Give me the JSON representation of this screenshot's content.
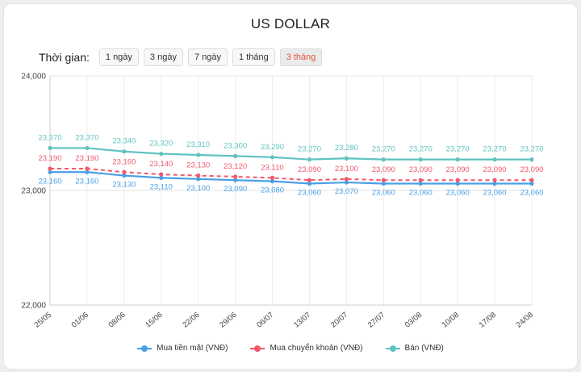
{
  "header": {
    "title": "US DOLLAR"
  },
  "range": {
    "label": "Thời gian:",
    "options": [
      "1 ngày",
      "3 ngày",
      "7 ngày",
      "1 tháng",
      "3 tháng"
    ],
    "selected": "3 tháng"
  },
  "chart_data": {
    "type": "line",
    "title": "US DOLLAR",
    "categories": [
      "25/05",
      "01/06",
      "08/06",
      "15/06",
      "22/06",
      "29/06",
      "06/07",
      "13/07",
      "20/07",
      "27/07",
      "03/08",
      "10/08",
      "17/08",
      "24/08"
    ],
    "ylim": [
      22000,
      24000
    ],
    "yticks": [
      "22,000",
      "23,000",
      "24,000"
    ],
    "grid": true,
    "legend_position": "bottom",
    "series": [
      {
        "name": "Mua tiền mặt (VNĐ)",
        "color": "#4a9fe6",
        "style": "solid",
        "values": [
          23160,
          23160,
          23130,
          23110,
          23100,
          23090,
          23080,
          23060,
          23070,
          23060,
          23060,
          23060,
          23060,
          23060
        ],
        "labels": [
          "23,160",
          "23,160",
          "23,130",
          "23,110",
          "23,100",
          "23,090",
          "23,080",
          "23,060",
          "23,070",
          "23,060",
          "23,060",
          "23,060",
          "23,060",
          "23,060"
        ]
      },
      {
        "name": "Mua chuyển khoản (VNĐ)",
        "color": "#f2576c",
        "style": "dashed",
        "values": [
          23190,
          23190,
          23160,
          23140,
          23130,
          23120,
          23110,
          23090,
          23100,
          23090,
          23090,
          23090,
          23090,
          23090
        ],
        "labels": [
          "23,190",
          "23,190",
          "23,160",
          "23,140",
          "23,130",
          "23,120",
          "23,110",
          "23,090",
          "23,100",
          "23,090",
          "23,090",
          "23,090",
          "23,090",
          "23,090"
        ]
      },
      {
        "name": "Bán (VNĐ)",
        "color": "#5fc3bf",
        "style": "solid",
        "values": [
          23370,
          23370,
          23340,
          23320,
          23310,
          23300,
          23290,
          23270,
          23280,
          23270,
          23270,
          23270,
          23270,
          23270
        ],
        "labels": [
          "23,370",
          "23,370",
          "23,340",
          "23,320",
          "23,310",
          "23,300",
          "23,290",
          "23,270",
          "23,280",
          "23,270",
          "23,270",
          "23,270",
          "23,270",
          "23,270"
        ]
      }
    ]
  }
}
